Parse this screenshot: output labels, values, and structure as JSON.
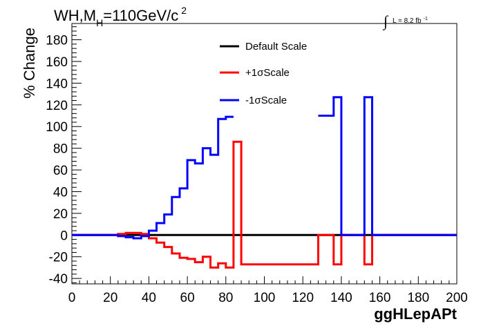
{
  "title": {
    "prefix": "WH,M",
    "subscript": "H",
    "suffix": "=110GeV/c",
    "superscript": "2"
  },
  "lumi": {
    "integral": "∫",
    "text": "L = 8.2 fb",
    "superscript": "-1"
  },
  "chart_data": {
    "type": "line",
    "xlabel": "ggHLepAPt",
    "ylabel": "% Change",
    "xlim": [
      0,
      200
    ],
    "ylim": [
      -45,
      195
    ],
    "x_ticks": [
      0,
      20,
      40,
      60,
      80,
      100,
      120,
      140,
      160,
      180,
      200
    ],
    "y_ticks": [
      -40,
      -20,
      0,
      20,
      40,
      60,
      80,
      100,
      120,
      140,
      160,
      180
    ],
    "grid": false,
    "legend_position": "top-center",
    "bin_edges": [
      0,
      20,
      24,
      28,
      32,
      36,
      40,
      44,
      48,
      52,
      56,
      60,
      64,
      68,
      72,
      76,
      80,
      84,
      88,
      128,
      136,
      140,
      152,
      156,
      200
    ],
    "series": [
      {
        "name": "Default Scale",
        "color": "#000000",
        "values": [
          0,
          0,
          0,
          0,
          0,
          0,
          0,
          0,
          0,
          0,
          0,
          0,
          0,
          0,
          0,
          0,
          0,
          0,
          0,
          0,
          0,
          0,
          0,
          0
        ]
      },
      {
        "name": "+1σScale",
        "color": "#ff0000",
        "values": [
          0,
          0,
          1,
          2,
          2,
          1,
          -3,
          -7,
          -11,
          -17,
          -21,
          -22,
          -25,
          -20,
          -30,
          -26,
          -30,
          86,
          -27,
          0,
          -27,
          0,
          -27,
          0
        ]
      },
      {
        "name": "-1σScale",
        "color": "#0000ff",
        "values": [
          0,
          0,
          -1,
          -2,
          -3,
          -1,
          4,
          11,
          19,
          35,
          43,
          69,
          66,
          80,
          74,
          107,
          109,
          null,
          null,
          110,
          127,
          0,
          127,
          0
        ]
      }
    ]
  },
  "colors": {
    "axis": "#000000",
    "background": "#ffffff"
  }
}
